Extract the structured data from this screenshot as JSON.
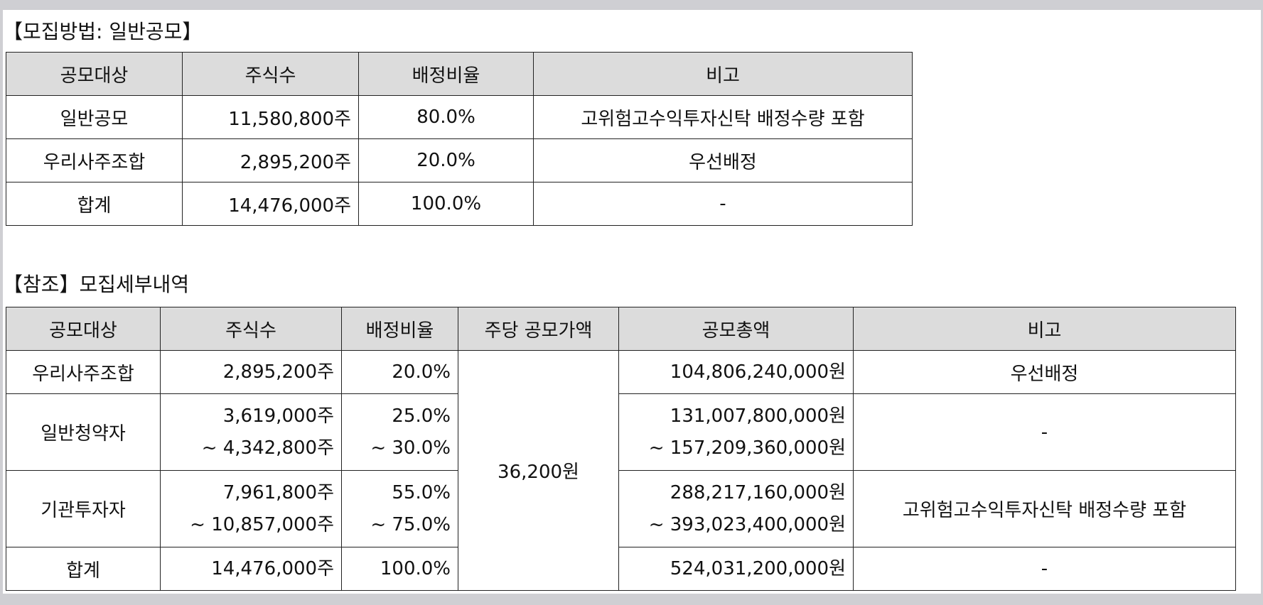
{
  "section1": {
    "title": "【모집방법: 일반공모】",
    "headers": [
      "공모대상",
      "주식수",
      "배정비율",
      "비고"
    ],
    "rows": [
      {
        "target": "일반공모",
        "shares": "11,580,800주",
        "ratio": "80.0%",
        "note": "고위험고수익투자신탁 배정수량 포함"
      },
      {
        "target": "우리사주조합",
        "shares": "2,895,200주",
        "ratio": "20.0%",
        "note": "우선배정"
      },
      {
        "target": "합계",
        "shares": "14,476,000주",
        "ratio": "100.0%",
        "note": "-"
      }
    ]
  },
  "section2": {
    "title": "【참조】모집세부내역",
    "headers": [
      "공모대상",
      "주식수",
      "배정비율",
      "주당 공모가액",
      "공모총액",
      "비고"
    ],
    "price_per_share": "36,200원",
    "rows": [
      {
        "target": "우리사주조합",
        "shares": [
          "2,895,200주"
        ],
        "ratio": [
          "20.0%"
        ],
        "total": [
          "104,806,240,000원"
        ],
        "note": "우선배정"
      },
      {
        "target": "일반청약자",
        "shares": [
          "3,619,000주",
          "~ 4,342,800주"
        ],
        "ratio": [
          "25.0%",
          "~ 30.0%"
        ],
        "total": [
          "131,007,800,000원",
          "~ 157,209,360,000원"
        ],
        "note": "-"
      },
      {
        "target": "기관투자자",
        "shares": [
          "7,961,800주",
          "~ 10,857,000주"
        ],
        "ratio": [
          "55.0%",
          "~ 75.0%"
        ],
        "total": [
          "288,217,160,000원",
          "~ 393,023,400,000원"
        ],
        "note": "고위험고수익투자신탁 배정수량 포함"
      },
      {
        "target": "합계",
        "shares": [
          "14,476,000주"
        ],
        "ratio": [
          "100.0%"
        ],
        "total": [
          "524,031,200,000원"
        ],
        "note": "-"
      }
    ]
  }
}
